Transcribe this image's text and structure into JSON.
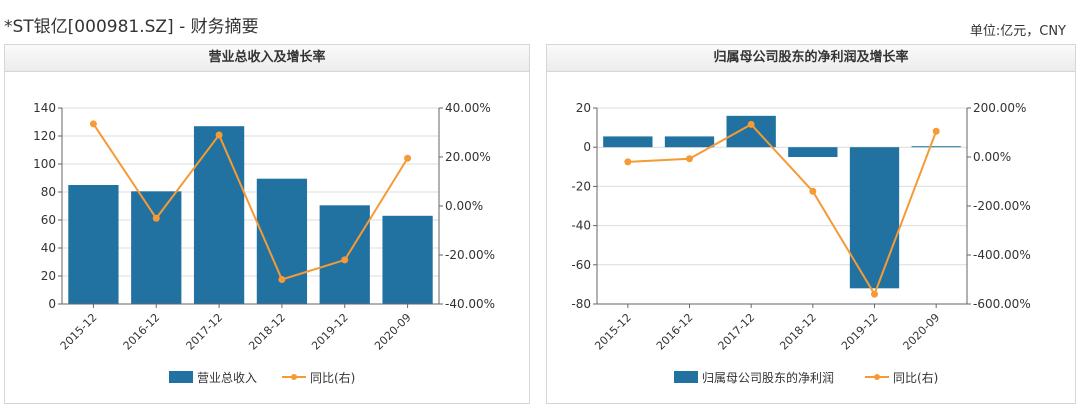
{
  "header": {
    "title": "*ST银亿[000981.SZ] - 财务摘要",
    "unit": "单位:亿元，CNY"
  },
  "colors": {
    "bar": "#2272a1",
    "line": "#f59a35"
  },
  "chart_data": [
    {
      "type": "bar",
      "title": "营业总收入及增长率",
      "categories": [
        "2015-12",
        "2016-12",
        "2017-12",
        "2018-12",
        "2019-12",
        "2020-09"
      ],
      "yticks_left": [
        "0",
        "20",
        "40",
        "60",
        "80",
        "100",
        "120",
        "140"
      ],
      "yticks_right": [
        "-40.00%",
        "-20.00%",
        "0.00%",
        "20.00%",
        "40.00%"
      ],
      "ylim": [
        0,
        140
      ],
      "y2lim": [
        -40,
        40
      ],
      "series": [
        {
          "name": "营业总收入",
          "kind": "bar",
          "values": [
            85,
            80.5,
            127,
            89.5,
            70.5,
            63
          ]
        },
        {
          "name": "同比(右)",
          "kind": "line",
          "values": [
            33.5,
            -5,
            29,
            -30,
            -22,
            19.5
          ]
        }
      ],
      "legend": "bottom-center"
    },
    {
      "type": "bar",
      "title": "归属母公司股东的净利润及增长率",
      "categories": [
        "2015-12",
        "2016-12",
        "2017-12",
        "2018-12",
        "2019-12",
        "2020-09"
      ],
      "yticks_left": [
        "-80",
        "-60",
        "-40",
        "-20",
        "0",
        "20"
      ],
      "yticks_right": [
        "-600.00%",
        "-400.00%",
        "-200.00%",
        "0.00%",
        "200.00%"
      ],
      "ylim": [
        -80,
        20
      ],
      "y2lim": [
        -600,
        200
      ],
      "series": [
        {
          "name": "归属母公司股东的净利润",
          "kind": "bar",
          "values": [
            5.5,
            5.5,
            16,
            -5,
            -72,
            0.5
          ]
        },
        {
          "name": "同比(右)",
          "kind": "line",
          "values": [
            -20,
            -7,
            133,
            -140,
            -560,
            105
          ]
        }
      ],
      "legend": "bottom-center"
    }
  ]
}
